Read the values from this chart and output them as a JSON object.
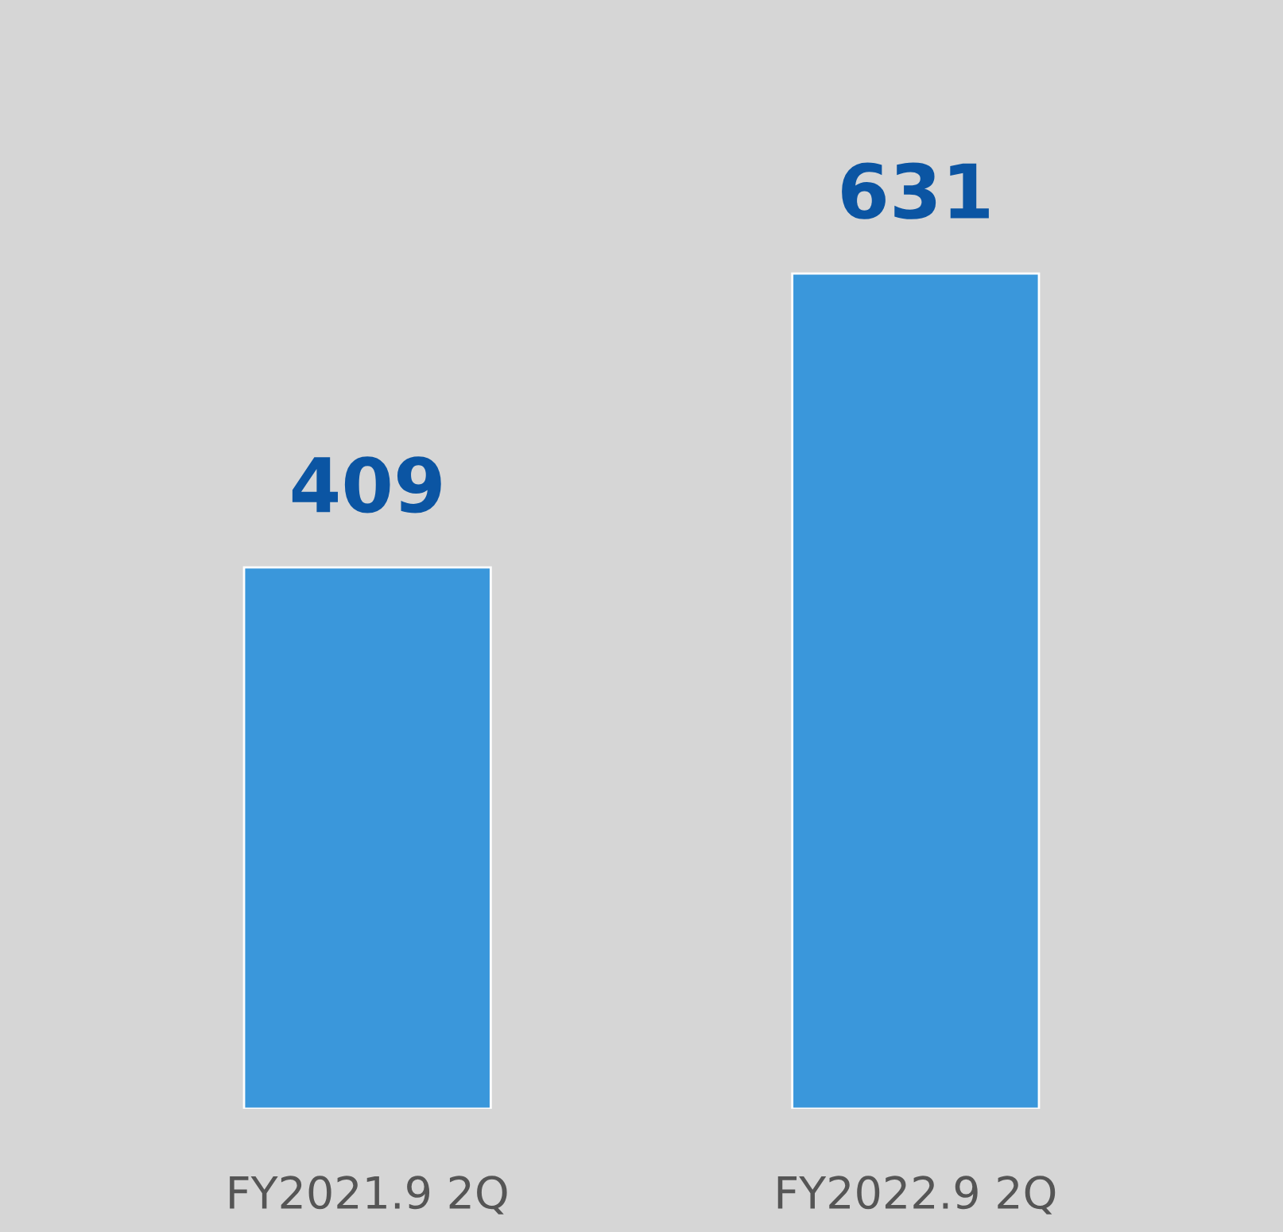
{
  "chart_data": {
    "type": "bar",
    "categories": [
      "FY2021.9 2Q",
      "FY2022.9 2Q"
    ],
    "values": [
      409,
      631
    ],
    "color": "#3a97db",
    "data_labels": true
  }
}
